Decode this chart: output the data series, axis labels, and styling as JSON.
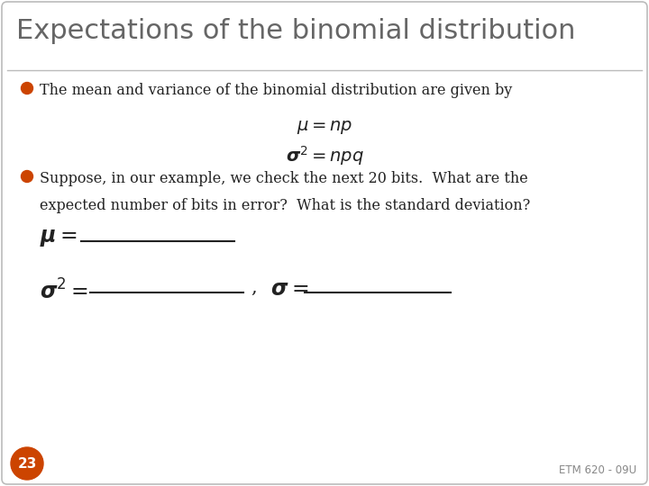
{
  "title": "Expectations of the binomial distribution",
  "title_color": "#666666",
  "title_fontsize": 22,
  "background_color": "#ffffff",
  "border_color": "#bbbbbb",
  "bullet_color": "#cc4400",
  "bullet1": "The mean and variance of the binomial distribution are given by",
  "formula1": "$\\mu = np$",
  "formula2": "$\\boldsymbol{\\sigma}^2 = npq$",
  "bullet2_line1": "Suppose, in our example, we check the next 20 bits.  What are the",
  "bullet2_line2": "expected number of bits in error?  What is the standard deviation?",
  "page_number": "23",
  "page_bg": "#cc4400",
  "page_color": "#ffffff",
  "footer_text": "ETM 620 - 09U",
  "footer_color": "#888888",
  "text_color": "#222222"
}
